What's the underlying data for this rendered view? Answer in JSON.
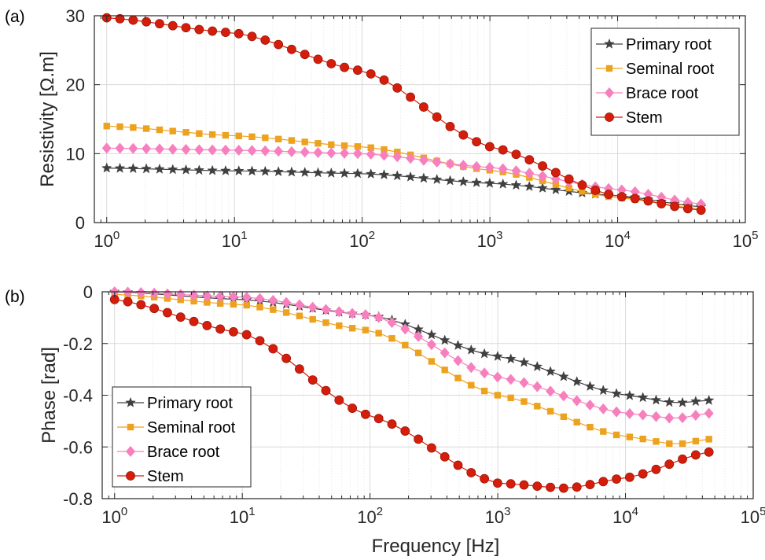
{
  "chart_data": [
    {
      "panel_label": "(a)",
      "type": "line",
      "xscale": "log",
      "xlim": [
        0.8,
        100000
      ],
      "ylim": [
        0,
        30
      ],
      "xlabel": "",
      "ylabel": "Resistivity [Ω.m]",
      "xticks": [
        1,
        10,
        100,
        1000,
        10000,
        100000
      ],
      "xtick_labels": [
        {
          "base": "10",
          "exp": "0"
        },
        {
          "base": "10",
          "exp": "1"
        },
        {
          "base": "10",
          "exp": "2"
        },
        {
          "base": "10",
          "exp": "3"
        },
        {
          "base": "10",
          "exp": "4"
        },
        {
          "base": "10",
          "exp": "5"
        }
      ],
      "yticks": [
        0,
        10,
        20,
        30
      ],
      "ytick_labels": [
        "0",
        "10",
        "20",
        "30"
      ],
      "grid": true,
      "legend_position": "top-right",
      "x_range": [
        1,
        45000
      ],
      "series": [
        {
          "name": "Primary root",
          "marker": "star",
          "color": "#404040",
          "points": [
            [
              1,
              7.9
            ],
            [
              10,
              7.5
            ],
            [
              100,
              7.1
            ],
            [
              1000,
              5.7
            ],
            [
              10000,
              3.9
            ],
            [
              45000,
              2.3
            ]
          ]
        },
        {
          "name": "Seminal root",
          "marker": "square",
          "color": "#EDA21F",
          "points": [
            [
              1,
              14.0
            ],
            [
              10,
              12.6
            ],
            [
              100,
              11.0
            ],
            [
              1000,
              7.6
            ],
            [
              10000,
              3.6
            ],
            [
              45000,
              2.0
            ]
          ]
        },
        {
          "name": "Brace root",
          "marker": "diamond",
          "color": "#F77FBE",
          "points": [
            [
              1,
              10.8
            ],
            [
              10,
              10.5
            ],
            [
              100,
              10.0
            ],
            [
              1000,
              8.0
            ],
            [
              10000,
              4.8
            ],
            [
              45000,
              2.7
            ]
          ]
        },
        {
          "name": "Stem",
          "marker": "circle",
          "color": "#D41D0A",
          "points": [
            [
              1,
              29.7
            ],
            [
              10,
              27.5
            ],
            [
              100,
              22.0
            ],
            [
              1000,
              11.0
            ],
            [
              10000,
              3.8
            ],
            [
              45000,
              1.8
            ]
          ]
        }
      ]
    },
    {
      "panel_label": "(b)",
      "type": "line",
      "xscale": "log",
      "xlim": [
        0.8,
        100000
      ],
      "ylim": [
        -0.8,
        0
      ],
      "xlabel": "Frequency [Hz]",
      "ylabel": "Phase [rad]",
      "xticks": [
        1,
        10,
        100,
        1000,
        10000,
        100000
      ],
      "xtick_labels": [
        {
          "base": "10",
          "exp": "0"
        },
        {
          "base": "10",
          "exp": "1"
        },
        {
          "base": "10",
          "exp": "2"
        },
        {
          "base": "10",
          "exp": "3"
        },
        {
          "base": "10",
          "exp": "4"
        },
        {
          "base": "10",
          "exp": "5"
        }
      ],
      "yticks": [
        -0.8,
        -0.6,
        -0.4,
        -0.2,
        0
      ],
      "ytick_labels": [
        "-0.8",
        "-0.6",
        "-0.4",
        "-0.2",
        "0"
      ],
      "grid": true,
      "legend_position": "bottom-left",
      "x_range": [
        1,
        45000
      ],
      "series": [
        {
          "name": "Primary root",
          "marker": "star",
          "color": "#404040",
          "points": [
            [
              1,
              0.0
            ],
            [
              10,
              -0.03
            ],
            [
              100,
              -0.09
            ],
            [
              1000,
              -0.25
            ],
            [
              10000,
              -0.4
            ],
            [
              25000,
              -0.43
            ],
            [
              45000,
              -0.42
            ]
          ]
        },
        {
          "name": "Seminal root",
          "marker": "square",
          "color": "#EDA21F",
          "points": [
            [
              1,
              -0.01
            ],
            [
              10,
              -0.05
            ],
            [
              100,
              -0.15
            ],
            [
              1000,
              -0.4
            ],
            [
              10000,
              -0.56
            ],
            [
              25000,
              -0.59
            ],
            [
              45000,
              -0.57
            ]
          ]
        },
        {
          "name": "Brace root",
          "marker": "diamond",
          "color": "#F77FBE",
          "points": [
            [
              1,
              0.0
            ],
            [
              10,
              -0.02
            ],
            [
              100,
              -0.09
            ],
            [
              1000,
              -0.33
            ],
            [
              10000,
              -0.47
            ],
            [
              25000,
              -0.49
            ],
            [
              45000,
              -0.47
            ]
          ]
        },
        {
          "name": "Stem",
          "marker": "circle",
          "color": "#D41D0A",
          "points": [
            [
              1,
              -0.03
            ],
            [
              10,
              -0.16
            ],
            [
              100,
              -0.48
            ],
            [
              1000,
              -0.74
            ],
            [
              3500,
              -0.76
            ],
            [
              10000,
              -0.72
            ],
            [
              45000,
              -0.62
            ]
          ]
        }
      ]
    }
  ]
}
